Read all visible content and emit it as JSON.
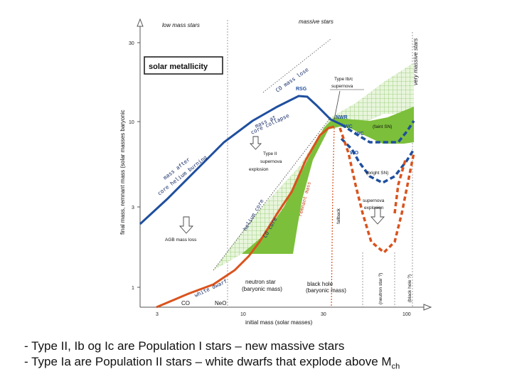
{
  "diagram": {
    "y_axis_label": "final mass, remnant mass (solar masses baryonic",
    "x_axis_label": "initial mass (solar masses)",
    "x_ticks": [
      "3",
      "10",
      "30",
      "100"
    ],
    "y_ticks": [
      "30",
      "10",
      "3",
      "1"
    ],
    "top_left_label": "low mass stars",
    "top_center_label": "massive stars",
    "very_massive_label": "very massive stars",
    "metallicity_box": "solar metallicity",
    "labels": {
      "co_mass_lose": "CO mass lose",
      "mass_at_core_collapse_1": "mass at",
      "mass_at_core_collapse_2": "core collapse",
      "mass_after_core_he_burning_1": "mass after",
      "mass_after_core_he_burning_2": "core helium burning",
      "helium_core": "helium core",
      "co_core": "CO core",
      "remnant_mass": "remnant mass",
      "rsg": "RSG",
      "type_ibc_1": "Type Ib/c",
      "type_ibc_2": "supernova",
      "nwr": "NWR",
      "wc_top": "WC",
      "wc_lower": "WC",
      "wo": "WO",
      "faint_sn": "(faint SN)",
      "bright_sn": "(bright SN)",
      "type_ii_1": "Type II",
      "type_ii_2": "supernova",
      "type_ii_3": "explosion",
      "supernova_expl_1": "supernova",
      "supernova_expl_2": "explosion",
      "fallback": "fallback",
      "agb_mass_loss": "AGB mass loss",
      "neutron_star_1": "neutron star",
      "neutron_star_2": "(baryonic mass)",
      "black_hole_1": "black hole",
      "black_hole_2": "(baryonic mass)",
      "white_dwarf": "white dwarf",
      "co_label": "CO",
      "oneo_label": "NeO",
      "neutron_star_q": "(neutron star ?)",
      "black_hole_q": "(black hole ?)"
    }
  },
  "caption": {
    "line1": "- Type II, Ib og Ic are Population I stars – new massive stars",
    "line2_text": "- Type Ia are Population II stars – white dwarfs that explode above M",
    "line2_sub": "ch"
  },
  "colors": {
    "blue_line": "#1f4f9e",
    "orange_line": "#d9531e",
    "green_fill": "#7cbf3a",
    "hatch": "#9fd07a"
  }
}
